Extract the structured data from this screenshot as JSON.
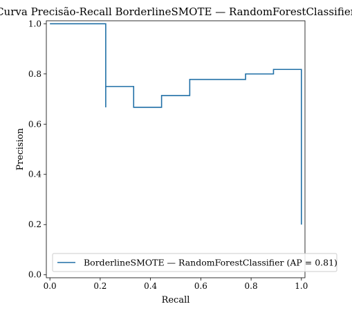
{
  "chart_data": {
    "type": "line",
    "title": "Curva Precisão-Recall BorderlineSMOTE — RandomForestClassifier",
    "xlabel": "Recall",
    "ylabel": "Precision",
    "xlim": [
      0.0,
      1.0
    ],
    "ylim": [
      0.0,
      1.0
    ],
    "xticks": [
      0.0,
      0.2,
      0.4,
      0.6,
      0.8,
      1.0
    ],
    "yticks": [
      0.0,
      0.2,
      0.4,
      0.6,
      0.8,
      1.0
    ],
    "xtick_labels": [
      "0.0",
      "0.2",
      "0.4",
      "0.6",
      "0.8",
      "1.0"
    ],
    "ytick_labels": [
      "0.0",
      "0.2",
      "0.4",
      "0.6",
      "0.8",
      "1.0"
    ],
    "grid": false,
    "legend_position": "lower-right",
    "step": "post",
    "series": [
      {
        "name": "BorderlineSMOTE — RandomForestClassifier (AP = 0.81)",
        "color": "#1f6fa6",
        "x": [
          0.0,
          0.222,
          0.222,
          0.333,
          0.333,
          0.444,
          0.444,
          0.556,
          0.556,
          0.778,
          0.778,
          0.889,
          0.889,
          1.0,
          1.0
        ],
        "y": [
          1.0,
          1.0,
          0.75,
          0.75,
          0.667,
          0.667,
          0.714,
          0.714,
          0.778,
          0.778,
          0.8,
          0.8,
          0.818,
          0.818,
          0.2
        ],
        "extra_segment": {
          "x": 0.222,
          "y_from": 0.75,
          "y_to": 0.667
        }
      }
    ]
  }
}
